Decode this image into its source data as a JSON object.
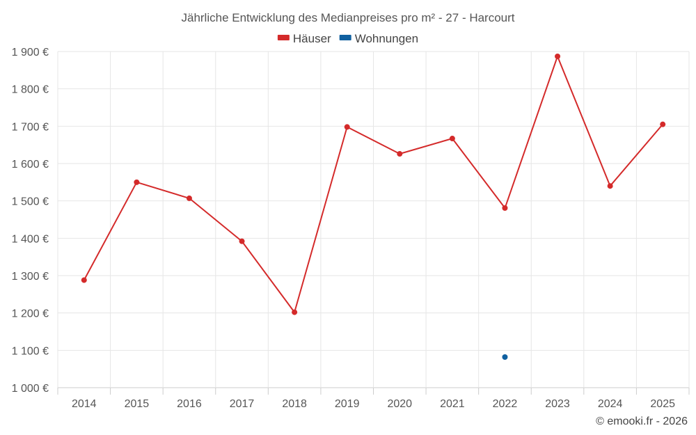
{
  "chart_data": {
    "type": "line",
    "title": "Jährliche Entwicklung des Medianpreises pro m² - 27 - Harcourt",
    "categories": [
      "2014",
      "2015",
      "2016",
      "2017",
      "2018",
      "2019",
      "2020",
      "2021",
      "2022",
      "2023",
      "2024",
      "2025"
    ],
    "series": [
      {
        "name": "Häuser",
        "color": "#d42a2a",
        "values": [
          1288,
          1550,
          1507,
          1392,
          1202,
          1698,
          1626,
          1667,
          1481,
          1887,
          1540,
          1705
        ]
      },
      {
        "name": "Wohnungen",
        "color": "#1060a0",
        "values": [
          null,
          null,
          null,
          null,
          null,
          null,
          null,
          null,
          1082,
          null,
          null,
          null
        ]
      }
    ],
    "ylim": [
      1000,
      1900
    ],
    "yticks": [
      1000,
      1100,
      1200,
      1300,
      1400,
      1500,
      1600,
      1700,
      1800,
      1900
    ],
    "ytick_labels": [
      "1 000 €",
      "1 100 €",
      "1 200 €",
      "1 300 €",
      "1 400 €",
      "1 500 €",
      "1 600 €",
      "1 700 €",
      "1 800 €",
      "1 900 €"
    ],
    "xlabel": "",
    "ylabel": "",
    "grid": true,
    "legend": "top-center"
  },
  "credit": "© emooki.fr - 2026"
}
